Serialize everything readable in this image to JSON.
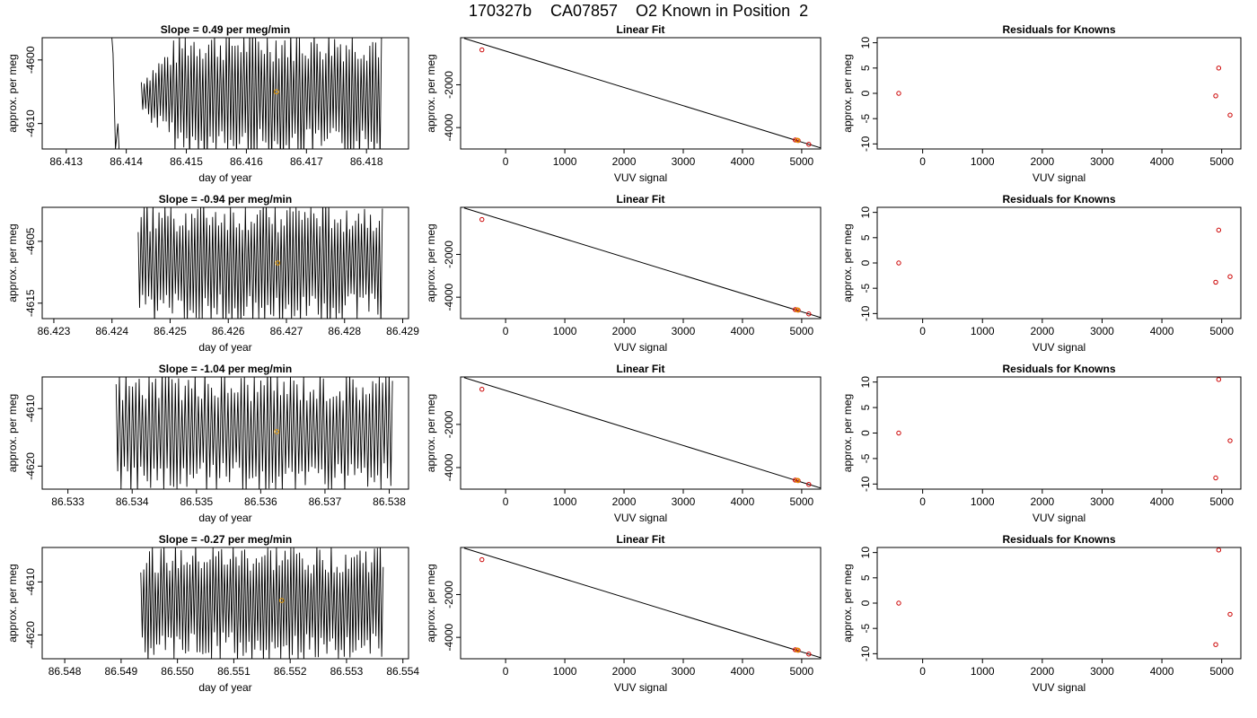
{
  "figure": {
    "title_parts": [
      "170327b",
      "CA07857",
      "O2 Known in Position  2"
    ]
  },
  "chart_data": [
    {
      "type": "line",
      "row": 0,
      "col": 0,
      "title": "Slope =  0.49  per meg/min",
      "xlabel": "day of year",
      "ylabel": "approx. per meg",
      "xlim": [
        86.4126,
        86.4187
      ],
      "ylim": [
        -4614,
        -4596.5
      ],
      "xticks": [
        86.413,
        86.414,
        86.415,
        86.416,
        86.417,
        86.418
      ],
      "xtick_labels": [
        "86.413",
        "86.414",
        "86.415",
        "86.416",
        "86.417",
        "86.418"
      ],
      "yticks": [
        -4600,
        -4610
      ],
      "ytick_labels": [
        "-4600",
        "-4610"
      ],
      "series": [
        {
          "color": "#000000",
          "x_start": 86.41375,
          "x_end": 86.41825,
          "cycles": 82,
          "center": -4605.5,
          "amplitude": 9.5,
          "gap": [
            86.41385,
            86.41425
          ],
          "early_points": [
            [
              86.41376,
              -4596.5
            ],
            [
              86.41378,
              -4599
            ],
            [
              86.41382,
              -4614
            ],
            [
              86.41386,
              -4610
            ],
            [
              86.41388,
              -4614
            ]
          ]
        }
      ],
      "marker": {
        "x": 86.4165,
        "y": -4605,
        "color": "#e69a00"
      }
    },
    {
      "type": "line",
      "row": 1,
      "col": 0,
      "title": "Slope =  -0.94  per meg/min",
      "xlabel": "day of year",
      "ylabel": "approx. per meg",
      "xlim": [
        86.4228,
        86.4291
      ],
      "ylim": [
        -4617.5,
        -4599.5
      ],
      "xticks": [
        86.423,
        86.424,
        86.425,
        86.426,
        86.427,
        86.428,
        86.429
      ],
      "xtick_labels": [
        "86.423",
        "86.424",
        "86.425",
        "86.426",
        "86.427",
        "86.428",
        "86.429"
      ],
      "yticks": [
        -4605,
        -4615
      ],
      "ytick_labels": [
        "-4605",
        "-4615"
      ],
      "series": [
        {
          "color": "#000000",
          "x_start": 86.42445,
          "x_end": 86.42865,
          "cycles": 82,
          "center": -4608.5,
          "amplitude": 9.0
        }
      ],
      "marker": {
        "x": 86.42685,
        "y": -4608.5,
        "color": "#e69a00"
      }
    },
    {
      "type": "line",
      "row": 2,
      "col": 0,
      "title": "Slope =  -1.04  per meg/min",
      "xlabel": "day of year",
      "ylabel": "approx. per meg",
      "xlim": [
        86.5326,
        86.5383
      ],
      "ylim": [
        -4624,
        -4604.5
      ],
      "xticks": [
        86.533,
        86.534,
        86.535,
        86.536,
        86.537,
        86.538
      ],
      "xtick_labels": [
        "86.533",
        "86.534",
        "86.535",
        "86.536",
        "86.537",
        "86.538"
      ],
      "yticks": [
        -4610,
        -4620
      ],
      "ytick_labels": [
        "-4610",
        "-4620"
      ],
      "series": [
        {
          "color": "#000000",
          "x_start": 86.53375,
          "x_end": 86.53805,
          "cycles": 84,
          "center": -4614,
          "amplitude": 9.5
        }
      ],
      "marker": {
        "x": 86.53625,
        "y": -4614,
        "color": "#e69a00"
      }
    },
    {
      "type": "line",
      "row": 3,
      "col": 0,
      "title": "Slope =  -0.27  per meg/min",
      "xlabel": "day of year",
      "ylabel": "approx. per meg",
      "xlim": [
        86.5476,
        86.5541
      ],
      "ylim": [
        -4624.5,
        -4603.5
      ],
      "xticks": [
        86.548,
        86.549,
        86.55,
        86.551,
        86.552,
        86.553,
        86.554
      ],
      "xtick_labels": [
        "86.548",
        "86.549",
        "86.550",
        "86.551",
        "86.552",
        "86.553",
        "86.554"
      ],
      "yticks": [
        -4610,
        -4620
      ],
      "ytick_labels": [
        "-4610",
        "-4620"
      ],
      "series": [
        {
          "color": "#000000",
          "x_start": 86.54935,
          "x_end": 86.55365,
          "cycles": 84,
          "center": -4614,
          "amplitude": 10.0
        }
      ],
      "marker": {
        "x": 86.55185,
        "y": -4613.5,
        "color": "#e69a00"
      }
    },
    {
      "type": "scatter",
      "row": 0,
      "col": 1,
      "title": "Linear Fit",
      "xlabel": "VUV signal",
      "ylabel": "approx. per meg",
      "xlim": [
        -760,
        5320
      ],
      "ylim": [
        -5000,
        200
      ],
      "xticks": [
        0,
        1000,
        2000,
        3000,
        4000,
        5000
      ],
      "xtick_labels": [
        "0",
        "1000",
        "2000",
        "3000",
        "4000",
        "5000"
      ],
      "yticks": [
        -2000,
        -4000
      ],
      "ytick_labels": [
        "-2000",
        "-4000"
      ],
      "points": [
        [
          -400,
          -370
        ],
        [
          4890,
          -4580
        ],
        [
          4920,
          -4590
        ],
        [
          4940,
          -4605
        ],
        [
          5120,
          -4780
        ]
      ],
      "point_color": "#cc0000",
      "fit_line": {
        "x": [
          -700,
          5320
        ],
        "y": [
          170,
          -4950
        ],
        "color": "#000000"
      },
      "highlight": {
        "x": 4930,
        "y": -4595,
        "color": "#e69a00"
      }
    },
    {
      "type": "scatter",
      "row": 1,
      "col": 1,
      "title": "Linear Fit",
      "xlabel": "VUV signal",
      "ylabel": "approx. per meg",
      "xlim": [
        -760,
        5320
      ],
      "ylim": [
        -5000,
        200
      ],
      "xticks": [
        0,
        1000,
        2000,
        3000,
        4000,
        5000
      ],
      "xtick_labels": [
        "0",
        "1000",
        "2000",
        "3000",
        "4000",
        "5000"
      ],
      "yticks": [
        -2000,
        -4000
      ],
      "ytick_labels": [
        "-2000",
        "-4000"
      ],
      "points": [
        [
          -400,
          -370
        ],
        [
          4890,
          -4580
        ],
        [
          4920,
          -4590
        ],
        [
          4940,
          -4605
        ],
        [
          5120,
          -4780
        ]
      ],
      "point_color": "#cc0000",
      "fit_line": {
        "x": [
          -700,
          5320
        ],
        "y": [
          170,
          -4950
        ],
        "color": "#000000"
      },
      "highlight": {
        "x": 4930,
        "y": -4595,
        "color": "#e69a00"
      }
    },
    {
      "type": "scatter",
      "row": 2,
      "col": 1,
      "title": "Linear Fit",
      "xlabel": "VUV signal",
      "ylabel": "approx. per meg",
      "xlim": [
        -760,
        5320
      ],
      "ylim": [
        -5000,
        200
      ],
      "xticks": [
        0,
        1000,
        2000,
        3000,
        4000,
        5000
      ],
      "xtick_labels": [
        "0",
        "1000",
        "2000",
        "3000",
        "4000",
        "5000"
      ],
      "yticks": [
        -2000,
        -4000
      ],
      "ytick_labels": [
        "-2000",
        "-4000"
      ],
      "points": [
        [
          -400,
          -370
        ],
        [
          4890,
          -4580
        ],
        [
          4920,
          -4590
        ],
        [
          4940,
          -4605
        ],
        [
          5120,
          -4780
        ]
      ],
      "point_color": "#cc0000",
      "fit_line": {
        "x": [
          -700,
          5320
        ],
        "y": [
          170,
          -4950
        ],
        "color": "#000000"
      },
      "highlight": {
        "x": 4930,
        "y": -4595,
        "color": "#e69a00"
      }
    },
    {
      "type": "scatter",
      "row": 3,
      "col": 1,
      "title": "Linear Fit",
      "xlabel": "VUV signal",
      "ylabel": "approx. per meg",
      "xlim": [
        -760,
        5320
      ],
      "ylim": [
        -5000,
        200
      ],
      "xticks": [
        0,
        1000,
        2000,
        3000,
        4000,
        5000
      ],
      "xtick_labels": [
        "0",
        "1000",
        "2000",
        "3000",
        "4000",
        "5000"
      ],
      "yticks": [
        -2000,
        -4000
      ],
      "ytick_labels": [
        "-2000",
        "-4000"
      ],
      "points": [
        [
          -400,
          -370
        ],
        [
          4890,
          -4580
        ],
        [
          4920,
          -4590
        ],
        [
          4940,
          -4605
        ],
        [
          5120,
          -4780
        ]
      ],
      "point_color": "#cc0000",
      "fit_line": {
        "x": [
          -700,
          5320
        ],
        "y": [
          170,
          -4950
        ],
        "color": "#000000"
      },
      "highlight": {
        "x": 4930,
        "y": -4595,
        "color": "#e69a00"
      }
    },
    {
      "type": "scatter",
      "row": 0,
      "col": 2,
      "title": "Residuals for Knowns",
      "xlabel": "VUV signal",
      "ylabel": "approx. per meg",
      "xlim": [
        -760,
        5320
      ],
      "ylim": [
        -11,
        11
      ],
      "xticks": [
        0,
        1000,
        2000,
        3000,
        4000,
        5000
      ],
      "xtick_labels": [
        "0",
        "1000",
        "2000",
        "3000",
        "4000",
        "5000"
      ],
      "yticks": [
        10,
        5,
        0,
        -5,
        -10
      ],
      "ytick_labels": [
        "10",
        "5",
        "0",
        "-5",
        "-10"
      ],
      "points": [
        [
          -400,
          0
        ],
        [
          4900,
          -0.5
        ],
        [
          4950,
          5
        ],
        [
          5140,
          -4.3
        ]
      ],
      "point_color": "#cc0000"
    },
    {
      "type": "scatter",
      "row": 1,
      "col": 2,
      "title": "Residuals for Knowns",
      "xlabel": "VUV signal",
      "ylabel": "approx. per meg",
      "xlim": [
        -760,
        5320
      ],
      "ylim": [
        -11,
        11
      ],
      "xticks": [
        0,
        1000,
        2000,
        3000,
        4000,
        5000
      ],
      "xtick_labels": [
        "0",
        "1000",
        "2000",
        "3000",
        "4000",
        "5000"
      ],
      "yticks": [
        10,
        5,
        0,
        -5,
        -10
      ],
      "ytick_labels": [
        "10",
        "5",
        "0",
        "-5",
        "-10"
      ],
      "points": [
        [
          -400,
          0
        ],
        [
          4900,
          -3.8
        ],
        [
          4950,
          6.5
        ],
        [
          5140,
          -2.7
        ]
      ],
      "point_color": "#cc0000"
    },
    {
      "type": "scatter",
      "row": 2,
      "col": 2,
      "title": "Residuals for Knowns",
      "xlabel": "VUV signal",
      "ylabel": "approx. per meg",
      "xlim": [
        -760,
        5320
      ],
      "ylim": [
        -11,
        11
      ],
      "xticks": [
        0,
        1000,
        2000,
        3000,
        4000,
        5000
      ],
      "xtick_labels": [
        "0",
        "1000",
        "2000",
        "3000",
        "4000",
        "5000"
      ],
      "yticks": [
        10,
        5,
        0,
        -5,
        -10
      ],
      "ytick_labels": [
        "10",
        "5",
        "0",
        "-5",
        "-10"
      ],
      "points": [
        [
          -400,
          0
        ],
        [
          4900,
          -8.8
        ],
        [
          4950,
          10.5
        ],
        [
          5140,
          -1.5
        ]
      ],
      "point_color": "#cc0000"
    },
    {
      "type": "scatter",
      "row": 3,
      "col": 2,
      "title": "Residuals for Knowns",
      "xlabel": "VUV signal",
      "ylabel": "approx. per meg",
      "xlim": [
        -760,
        5320
      ],
      "ylim": [
        -11,
        11
      ],
      "xticks": [
        0,
        1000,
        2000,
        3000,
        4000,
        5000
      ],
      "xtick_labels": [
        "0",
        "1000",
        "2000",
        "3000",
        "4000",
        "5000"
      ],
      "yticks": [
        10,
        5,
        0,
        -5,
        -10
      ],
      "ytick_labels": [
        "10",
        "5",
        "0",
        "-5",
        "-10"
      ],
      "points": [
        [
          -400,
          0
        ],
        [
          4900,
          -8.2
        ],
        [
          4950,
          10.5
        ],
        [
          5140,
          -2.2
        ]
      ],
      "point_color": "#cc0000"
    }
  ]
}
